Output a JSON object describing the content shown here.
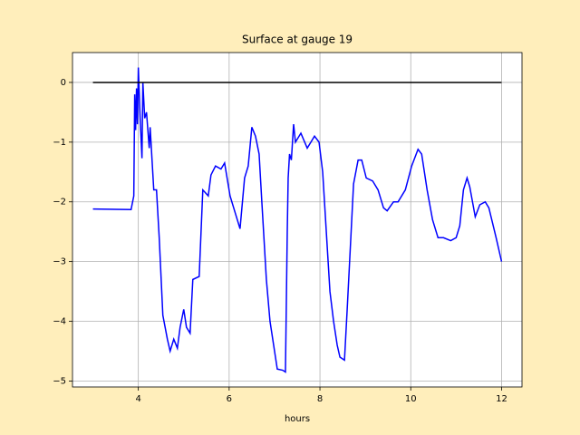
{
  "chart_data": {
    "type": "line",
    "title": "Surface at gauge 19",
    "xlabel": "hours",
    "xlim": [
      2.55,
      12.45
    ],
    "ylim": [
      -5.1,
      0.5
    ],
    "xticks": [
      4,
      6,
      8,
      10,
      12
    ],
    "yticks": [
      0,
      {
        "value": -1,
        "label": "−1"
      },
      {
        "value": -2,
        "label": "−2"
      },
      {
        "value": -3,
        "label": "−3"
      },
      {
        "value": -4,
        "label": "−4"
      },
      {
        "value": -5,
        "label": "−5"
      }
    ],
    "grid": true,
    "series": [
      {
        "color": "#0000ff",
        "x": [
          3.0,
          3.84,
          3.9,
          3.92,
          3.94,
          3.96,
          3.98,
          4.0,
          4.04,
          4.08,
          4.1,
          4.14,
          4.18,
          4.24,
          4.26,
          4.34,
          4.4,
          4.46,
          4.54,
          4.64,
          4.7,
          4.78,
          4.86,
          4.92,
          5.0,
          5.06,
          5.14,
          5.2,
          5.34,
          5.42,
          5.54,
          5.6,
          5.7,
          5.82,
          5.9,
          6.02,
          6.14,
          6.24,
          6.34,
          6.42,
          6.5,
          6.58,
          6.66,
          6.72,
          6.82,
          6.9,
          6.98,
          7.06,
          7.18,
          7.24,
          7.28,
          7.3,
          7.33,
          7.37,
          7.42,
          7.46,
          7.58,
          7.72,
          7.8,
          7.88,
          7.98,
          8.06,
          8.14,
          8.22,
          8.3,
          8.38,
          8.44,
          8.54,
          8.6,
          8.64,
          8.74,
          8.84,
          8.92,
          9.02,
          9.16,
          9.28,
          9.4,
          9.48,
          9.62,
          9.72,
          9.88,
          10.02,
          10.16,
          10.24,
          10.36,
          10.48,
          10.6,
          10.72,
          10.88,
          11.0,
          11.08,
          11.16,
          11.24,
          11.3,
          11.42,
          11.52,
          11.64,
          11.72,
          11.88,
          12.0
        ],
        "values": [
          -2.12,
          -2.13,
          -1.9,
          -0.2,
          -0.8,
          -0.1,
          -0.7,
          0.25,
          -0.6,
          -1.27,
          0.0,
          -0.6,
          -0.5,
          -1.1,
          -0.75,
          -1.8,
          -1.8,
          -2.6,
          -3.9,
          -4.3,
          -4.5,
          -4.3,
          -4.45,
          -4.1,
          -3.8,
          -4.1,
          -4.2,
          -3.3,
          -3.25,
          -1.8,
          -1.9,
          -1.55,
          -1.4,
          -1.45,
          -1.35,
          -1.9,
          -2.2,
          -2.45,
          -1.6,
          -1.4,
          -0.75,
          -0.9,
          -1.2,
          -2.0,
          -3.3,
          -4.0,
          -4.4,
          -4.8,
          -4.82,
          -4.85,
          -2.5,
          -1.6,
          -1.2,
          -1.3,
          -0.7,
          -1.0,
          -0.85,
          -1.1,
          -1.0,
          -0.9,
          -1.0,
          -1.5,
          -2.5,
          -3.5,
          -4.0,
          -4.4,
          -4.6,
          -4.65,
          -3.8,
          -3.2,
          -1.7,
          -1.3,
          -1.3,
          -1.6,
          -1.65,
          -1.8,
          -2.1,
          -2.15,
          -2.0,
          -2.0,
          -1.8,
          -1.4,
          -1.12,
          -1.2,
          -1.8,
          -2.3,
          -2.6,
          -2.6,
          -2.65,
          -2.6,
          -2.4,
          -1.8,
          -1.6,
          -1.75,
          -2.25,
          -2.05,
          -2.0,
          -2.1,
          -2.6,
          -3.0
        ]
      },
      {
        "color": "#000000",
        "x": [
          3,
          12
        ],
        "values": [
          0,
          0
        ]
      }
    ]
  }
}
